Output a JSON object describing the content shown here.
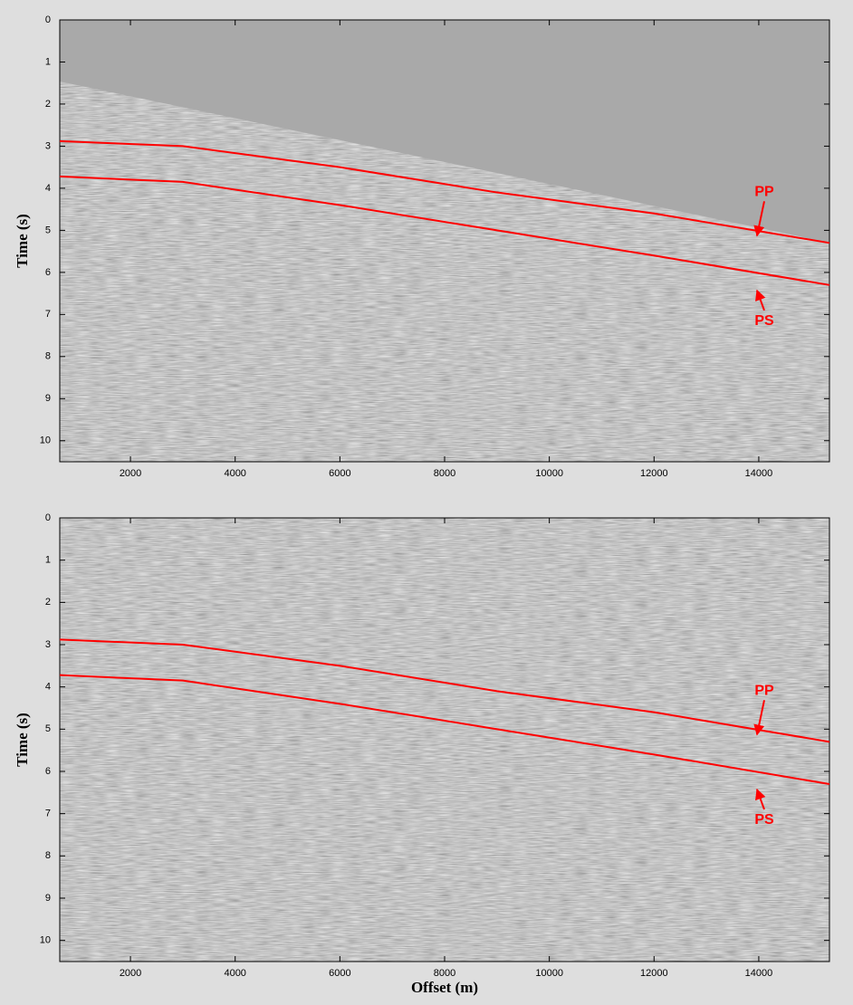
{
  "chart_data": [
    {
      "type": "line",
      "ylabel": "Time (s)",
      "x": [
        650,
        3000,
        6000,
        9000,
        12000,
        15350
      ],
      "series": [
        {
          "name": "PP",
          "color": "#ff0000",
          "values": [
            2.88,
            3.0,
            3.5,
            4.1,
            4.6,
            5.3
          ]
        },
        {
          "name": "PS",
          "color": "#ff0000",
          "values": [
            3.72,
            3.85,
            4.4,
            5.0,
            5.6,
            6.3
          ]
        }
      ],
      "xlim": [
        650,
        15350
      ],
      "ylim": [
        0,
        10.5
      ],
      "y_inverted": true,
      "xticks": [
        2000,
        4000,
        6000,
        8000,
        10000,
        12000,
        14000
      ],
      "yticks": [
        0,
        1,
        2,
        3,
        4,
        5,
        6,
        7,
        8,
        9,
        10
      ]
    },
    {
      "type": "line",
      "ylabel": "Time (s)",
      "xlabel": "Offset (m)",
      "x": [
        650,
        3000,
        6000,
        9000,
        12000,
        15350
      ],
      "series": [
        {
          "name": "PP",
          "color": "#ff0000",
          "values": [
            2.88,
            3.0,
            3.5,
            4.1,
            4.6,
            5.3
          ]
        },
        {
          "name": "PS",
          "color": "#ff0000",
          "values": [
            3.72,
            3.85,
            4.4,
            5.0,
            5.6,
            6.3
          ]
        }
      ],
      "xlim": [
        650,
        15350
      ],
      "ylim": [
        0,
        10.5
      ],
      "y_inverted": true,
      "xticks": [
        2000,
        4000,
        6000,
        8000,
        10000,
        12000,
        14000
      ],
      "yticks": [
        0,
        1,
        2,
        3,
        4,
        5,
        6,
        7,
        8,
        9,
        10
      ]
    }
  ]
}
